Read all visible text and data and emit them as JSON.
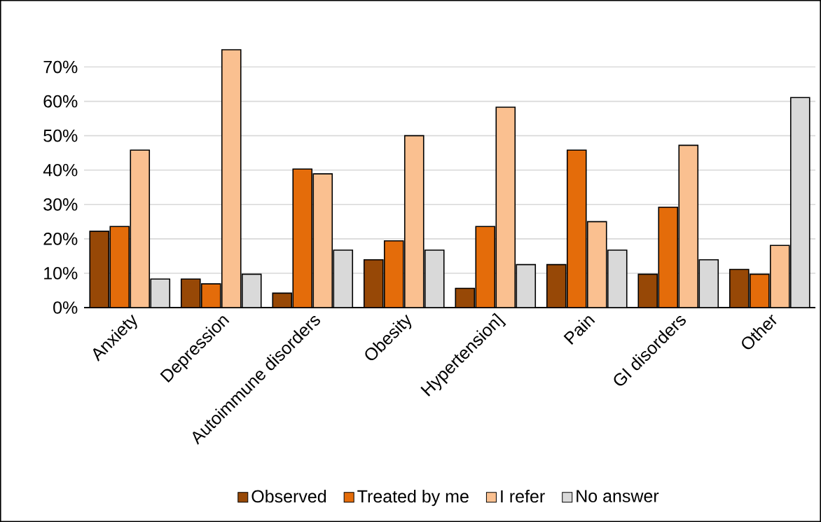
{
  "chart_data": {
    "type": "bar",
    "categories": [
      "Anxiety",
      "Depression",
      "Autoimmune disorders",
      "Obesity",
      "Hypertension]",
      "Pain",
      "GI disorders",
      "Other"
    ],
    "series": [
      {
        "name": "Observed",
        "color": "#974806",
        "values": [
          22.2,
          8.3,
          4.2,
          13.9,
          5.6,
          12.5,
          9.7,
          11.1
        ]
      },
      {
        "name": "Treated by me",
        "color": "#e46c0a",
        "values": [
          23.6,
          6.9,
          40.3,
          19.4,
          23.6,
          45.8,
          29.2,
          9.7
        ]
      },
      {
        "name": "I refer",
        "color": "#fac090",
        "values": [
          45.8,
          75.0,
          38.9,
          50.0,
          58.3,
          25.0,
          47.2,
          18.1
        ]
      },
      {
        "name": "No answer",
        "color": "#d9d9d9",
        "values": [
          8.3,
          9.7,
          16.7,
          16.7,
          12.5,
          16.7,
          13.9,
          61.1
        ]
      }
    ],
    "ylim": [
      0,
      75
    ],
    "yticks": [
      {
        "value": 0,
        "label": "0%"
      },
      {
        "value": 10,
        "label": "10%"
      },
      {
        "value": 20,
        "label": "20%"
      },
      {
        "value": 30,
        "label": "30%"
      },
      {
        "value": 40,
        "label": "40%"
      },
      {
        "value": 50,
        "label": "50%"
      },
      {
        "value": 60,
        "label": "60%"
      },
      {
        "value": 70,
        "label": "70%"
      }
    ],
    "grid": "y",
    "legend": "bottom"
  }
}
